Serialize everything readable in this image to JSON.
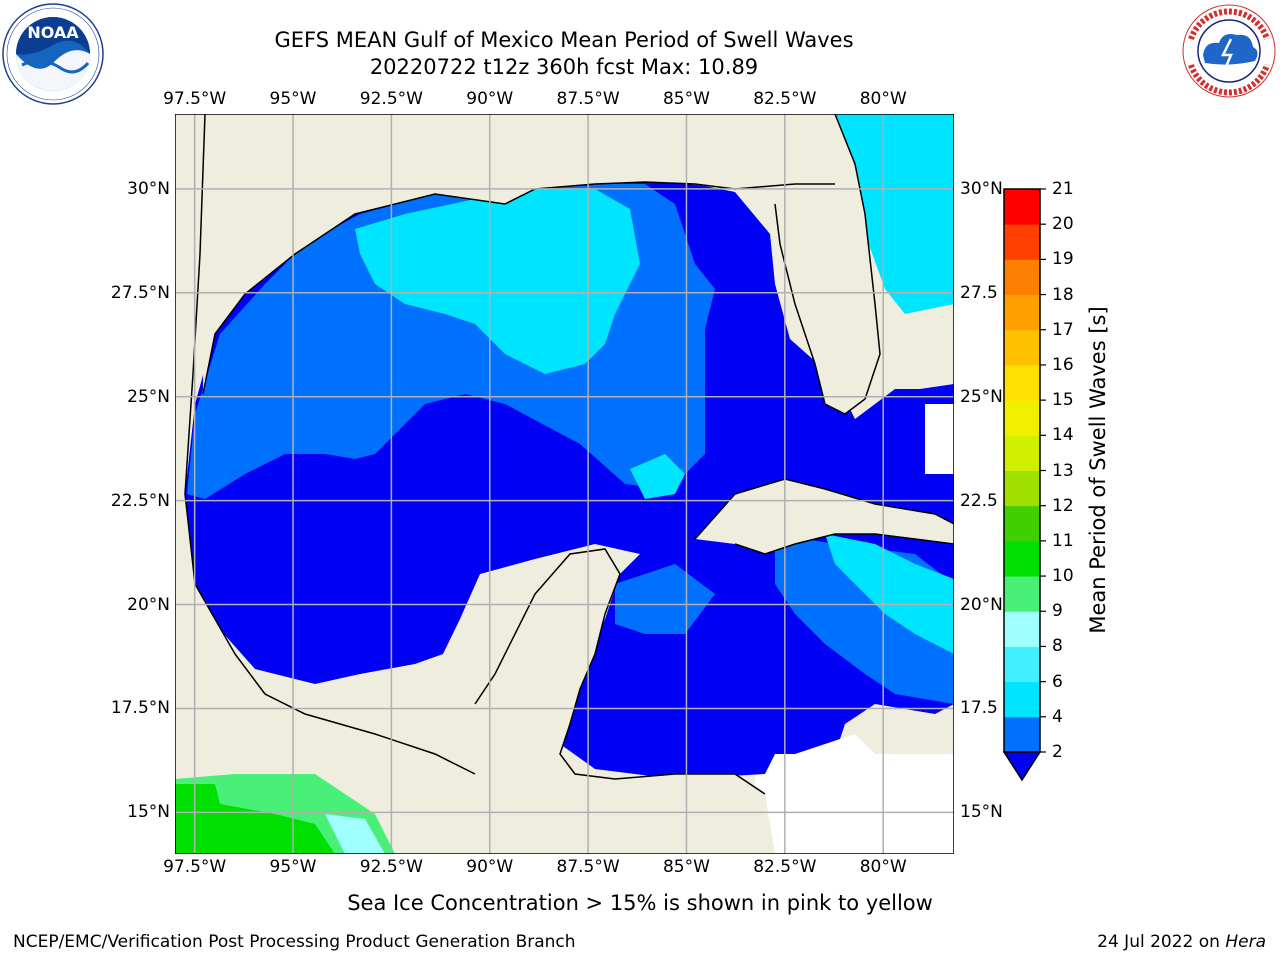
{
  "header": {
    "title_line1": "GEFS MEAN Gulf of Mexico Mean Period of Swell Waves",
    "title_line2": "20220722 t12z 360h fcst   Max: 10.89"
  },
  "logos": {
    "left": "NOAA",
    "left_ring_text": "NATIONAL OCEANIC AND ATMOSPHERIC ADMINISTRATION · U.S. DEPARTMENT OF COMMERCE",
    "right_ring_text": "NATIONAL WEATHER SERVICE"
  },
  "map": {
    "lon_ticks": [
      "97.5°W",
      "95°W",
      "92.5°W",
      "90°W",
      "87.5°W",
      "85°W",
      "82.5°W",
      "80°W"
    ],
    "lat_ticks_left": [
      "30°N",
      "27.5°N",
      "25°N",
      "22.5°N",
      "20°N",
      "17.5°N",
      "15°N"
    ],
    "lat_ticks_right": [
      "30°N",
      "27.5",
      "25°N",
      "22.5",
      "20°N",
      "17.5",
      "15°N"
    ],
    "lon_range": [
      -98,
      -78.2
    ],
    "lat_range": [
      14.0,
      31.8
    ],
    "colors": {
      "land": "#eeedde",
      "ocean_missing": "#ffffff",
      "grid": "#b0b0b0"
    }
  },
  "colorbar": {
    "label": "Mean Period of Swell Waves [s]",
    "ticks": [
      "21",
      "20",
      "19",
      "18",
      "17",
      "16",
      "15",
      "14",
      "13",
      "12",
      "11",
      "10",
      "9",
      "8",
      "6",
      "4",
      "2"
    ],
    "levels": [
      2,
      4,
      6,
      8,
      9,
      10,
      11,
      12,
      13,
      14,
      15,
      16,
      17,
      18,
      19,
      20,
      21
    ],
    "colors": [
      "#0000f5",
      "#0070ff",
      "#00e5ff",
      "#40f0ff",
      "#a0ffff",
      "#48f078",
      "#00e000",
      "#40d000",
      "#a0e000",
      "#d0f000",
      "#f0f000",
      "#ffe000",
      "#ffc000",
      "#ffa000",
      "#ff8000",
      "#ff4000",
      "#ff0000"
    ],
    "under_color": "#0000f5"
  },
  "note": "Sea Ice Concentration > 15% is shown in pink to yellow",
  "footer": {
    "left": "NCEP/EMC/Verification Post Processing Product Generation Branch",
    "date": "24 Jul 2022 on ",
    "host": "Hera"
  }
}
